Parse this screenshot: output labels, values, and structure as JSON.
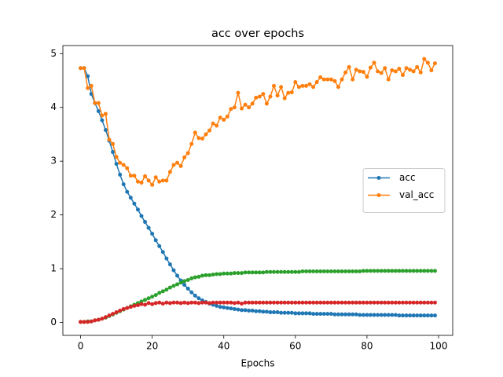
{
  "chart_data": {
    "type": "line",
    "title": "acc over epochs",
    "x_label": "Epochs",
    "x": [
      0,
      1,
      2,
      3,
      4,
      5,
      6,
      7,
      8,
      9,
      10,
      11,
      12,
      13,
      14,
      15,
      16,
      17,
      18,
      19,
      20,
      21,
      22,
      23,
      24,
      25,
      26,
      27,
      28,
      29,
      30,
      31,
      32,
      33,
      34,
      35,
      36,
      37,
      38,
      39,
      40,
      41,
      42,
      43,
      44,
      45,
      46,
      47,
      48,
      49,
      50,
      51,
      52,
      53,
      54,
      55,
      56,
      57,
      58,
      59,
      60,
      61,
      62,
      63,
      64,
      65,
      66,
      67,
      68,
      69,
      70,
      71,
      72,
      73,
      74,
      75,
      76,
      77,
      78,
      79,
      80,
      81,
      82,
      83,
      84,
      85,
      86,
      87,
      88,
      89,
      90,
      91,
      92,
      93,
      94,
      95,
      96,
      97,
      98,
      99
    ],
    "series": [
      {
        "name": "acc",
        "color": "#1f77b4",
        "values": [
          4.73,
          4.73,
          4.58,
          4.25,
          4.08,
          3.93,
          3.76,
          3.58,
          3.38,
          3.17,
          2.95,
          2.75,
          2.57,
          2.43,
          2.32,
          2.21,
          2.1,
          1.98,
          1.87,
          1.76,
          1.65,
          1.53,
          1.42,
          1.31,
          1.19,
          1.08,
          0.97,
          0.87,
          0.78,
          0.7,
          0.63,
          0.56,
          0.5,
          0.45,
          0.41,
          0.38,
          0.35,
          0.33,
          0.31,
          0.29,
          0.28,
          0.27,
          0.26,
          0.25,
          0.24,
          0.23,
          0.23,
          0.22,
          0.22,
          0.21,
          0.21,
          0.2,
          0.2,
          0.19,
          0.19,
          0.19,
          0.18,
          0.18,
          0.18,
          0.18,
          0.17,
          0.17,
          0.17,
          0.17,
          0.17,
          0.16,
          0.16,
          0.16,
          0.16,
          0.16,
          0.16,
          0.15,
          0.15,
          0.15,
          0.15,
          0.15,
          0.15,
          0.15,
          0.14,
          0.14,
          0.14,
          0.14,
          0.14,
          0.14,
          0.14,
          0.14,
          0.14,
          0.14,
          0.14,
          0.13,
          0.13,
          0.13,
          0.13,
          0.13,
          0.13,
          0.13,
          0.13,
          0.13,
          0.13,
          0.13
        ]
      },
      {
        "name": "val_acc",
        "color": "#ff7f0e",
        "values": [
          4.73,
          4.73,
          4.36,
          4.4,
          4.08,
          4.08,
          3.85,
          3.88,
          3.4,
          3.32,
          3.08,
          2.97,
          2.93,
          2.87,
          2.73,
          2.73,
          2.62,
          2.6,
          2.72,
          2.64,
          2.56,
          2.7,
          2.62,
          2.64,
          2.64,
          2.8,
          2.93,
          2.97,
          2.91,
          3.07,
          3.15,
          3.32,
          3.53,
          3.43,
          3.42,
          3.5,
          3.57,
          3.7,
          3.66,
          3.81,
          3.77,
          3.83,
          3.97,
          4.0,
          4.27,
          3.98,
          4.05,
          4.0,
          4.07,
          4.18,
          4.2,
          4.25,
          4.07,
          4.2,
          4.4,
          4.22,
          4.38,
          4.17,
          4.27,
          4.28,
          4.47,
          4.38,
          4.4,
          4.4,
          4.43,
          4.38,
          4.47,
          4.56,
          4.52,
          4.52,
          4.52,
          4.49,
          4.38,
          4.52,
          4.65,
          4.75,
          4.52,
          4.7,
          4.67,
          4.66,
          4.57,
          4.74,
          4.83,
          4.67,
          4.64,
          4.73,
          4.52,
          4.69,
          4.67,
          4.72,
          4.6,
          4.73,
          4.7,
          4.67,
          4.75,
          4.65,
          4.9,
          4.83,
          4.69,
          4.82
        ]
      },
      {
        "color": "#2ca02c",
        "values": [
          0.01,
          0.01,
          0.02,
          0.02,
          0.04,
          0.05,
          0.07,
          0.09,
          0.12,
          0.15,
          0.18,
          0.21,
          0.24,
          0.27,
          0.3,
          0.33,
          0.36,
          0.39,
          0.42,
          0.45,
          0.48,
          0.51,
          0.55,
          0.58,
          0.61,
          0.65,
          0.68,
          0.71,
          0.74,
          0.77,
          0.79,
          0.82,
          0.84,
          0.85,
          0.87,
          0.88,
          0.88,
          0.89,
          0.9,
          0.9,
          0.91,
          0.91,
          0.91,
          0.92,
          0.92,
          0.92,
          0.93,
          0.93,
          0.93,
          0.93,
          0.93,
          0.93,
          0.94,
          0.94,
          0.94,
          0.94,
          0.94,
          0.94,
          0.94,
          0.94,
          0.94,
          0.94,
          0.95,
          0.95,
          0.95,
          0.95,
          0.95,
          0.95,
          0.95,
          0.95,
          0.95,
          0.95,
          0.95,
          0.95,
          0.95,
          0.95,
          0.95,
          0.95,
          0.95,
          0.96,
          0.96,
          0.96,
          0.96,
          0.96,
          0.96,
          0.96,
          0.96,
          0.96,
          0.96,
          0.96,
          0.96,
          0.96,
          0.96,
          0.96,
          0.96,
          0.96,
          0.96,
          0.96,
          0.96,
          0.96
        ]
      },
      {
        "color": "#d62728",
        "values": [
          0.01,
          0.01,
          0.01,
          0.02,
          0.04,
          0.05,
          0.07,
          0.1,
          0.13,
          0.16,
          0.19,
          0.22,
          0.25,
          0.27,
          0.29,
          0.31,
          0.32,
          0.34,
          0.33,
          0.36,
          0.34,
          0.36,
          0.37,
          0.35,
          0.37,
          0.36,
          0.37,
          0.37,
          0.36,
          0.37,
          0.36,
          0.37,
          0.37,
          0.36,
          0.37,
          0.37,
          0.36,
          0.37,
          0.37,
          0.37,
          0.37,
          0.37,
          0.37,
          0.36,
          0.37,
          0.35,
          0.37,
          0.37,
          0.37,
          0.37,
          0.37,
          0.37,
          0.37,
          0.37,
          0.37,
          0.37,
          0.37,
          0.37,
          0.37,
          0.37,
          0.37,
          0.37,
          0.37,
          0.37,
          0.37,
          0.37,
          0.37,
          0.37,
          0.37,
          0.37,
          0.37,
          0.37,
          0.37,
          0.37,
          0.37,
          0.37,
          0.37,
          0.37,
          0.37,
          0.37,
          0.37,
          0.37,
          0.37,
          0.37,
          0.37,
          0.37,
          0.37,
          0.37,
          0.37,
          0.37,
          0.37,
          0.37,
          0.37,
          0.37,
          0.37,
          0.37,
          0.37,
          0.37,
          0.37,
          0.37
        ]
      }
    ],
    "xlim": [
      -4.95,
      103.95
    ],
    "ylim": [
      -0.24,
      5.15
    ],
    "xticks": [
      0,
      20,
      40,
      60,
      80,
      100
    ],
    "yticks": [
      0,
      1,
      2,
      3,
      4,
      5
    ],
    "legend": "center right"
  }
}
